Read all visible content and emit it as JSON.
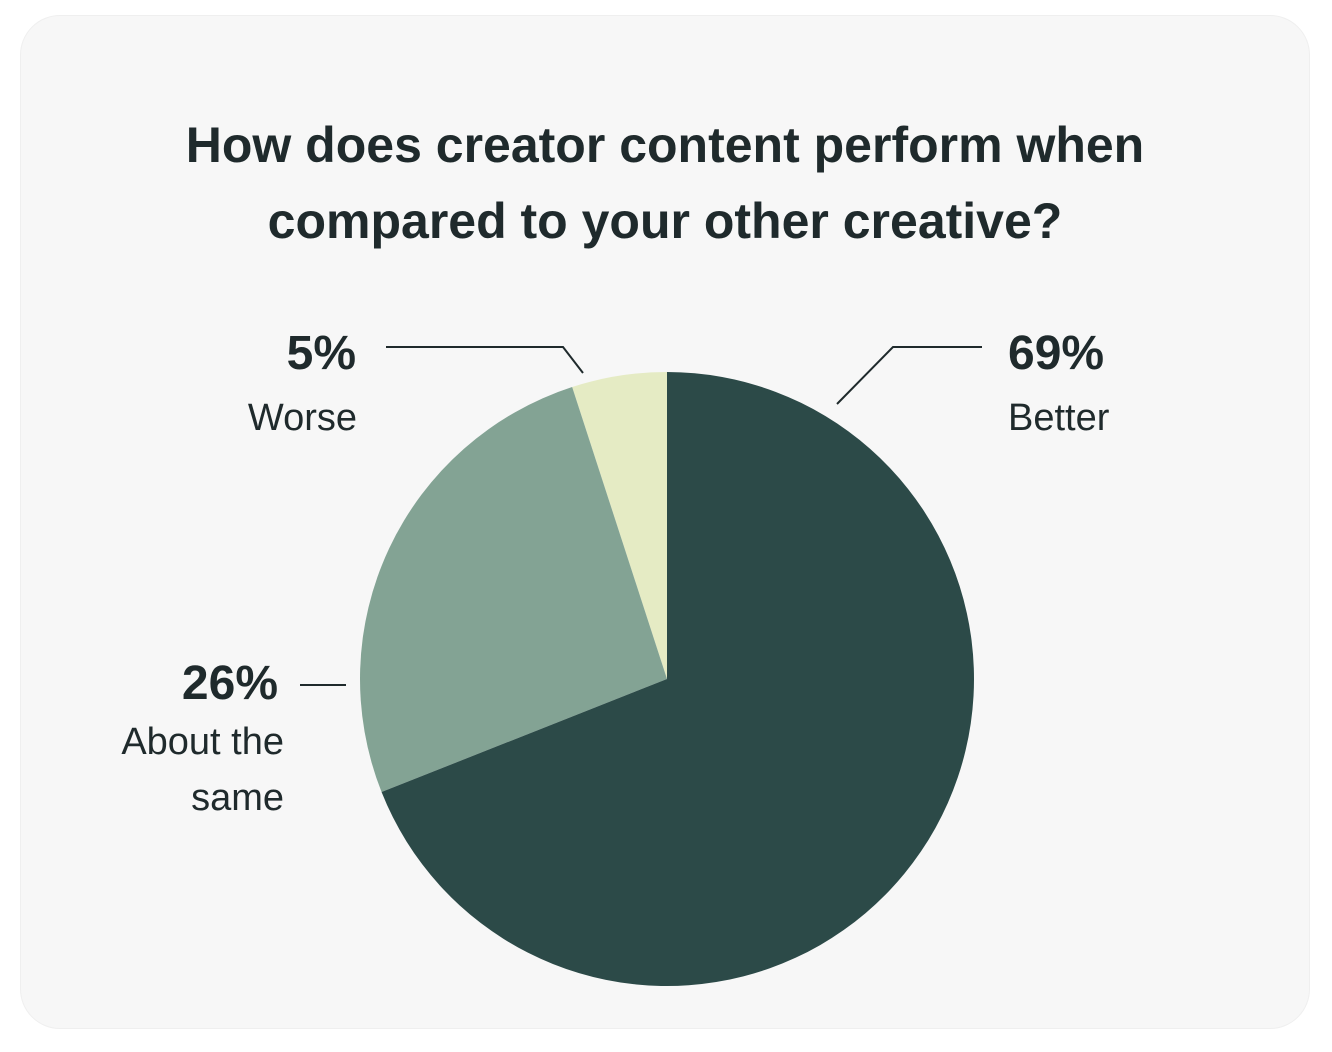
{
  "chart_data": {
    "type": "pie",
    "title": "How does creator content perform when compared to your other creative?",
    "categories": [
      "Better",
      "About the same",
      "Worse"
    ],
    "values": [
      69,
      26,
      5
    ],
    "value_labels": [
      "69%",
      "26%",
      "5%"
    ],
    "colors": [
      "#2c4a48",
      "#83a394",
      "#e5ebc4"
    ]
  }
}
